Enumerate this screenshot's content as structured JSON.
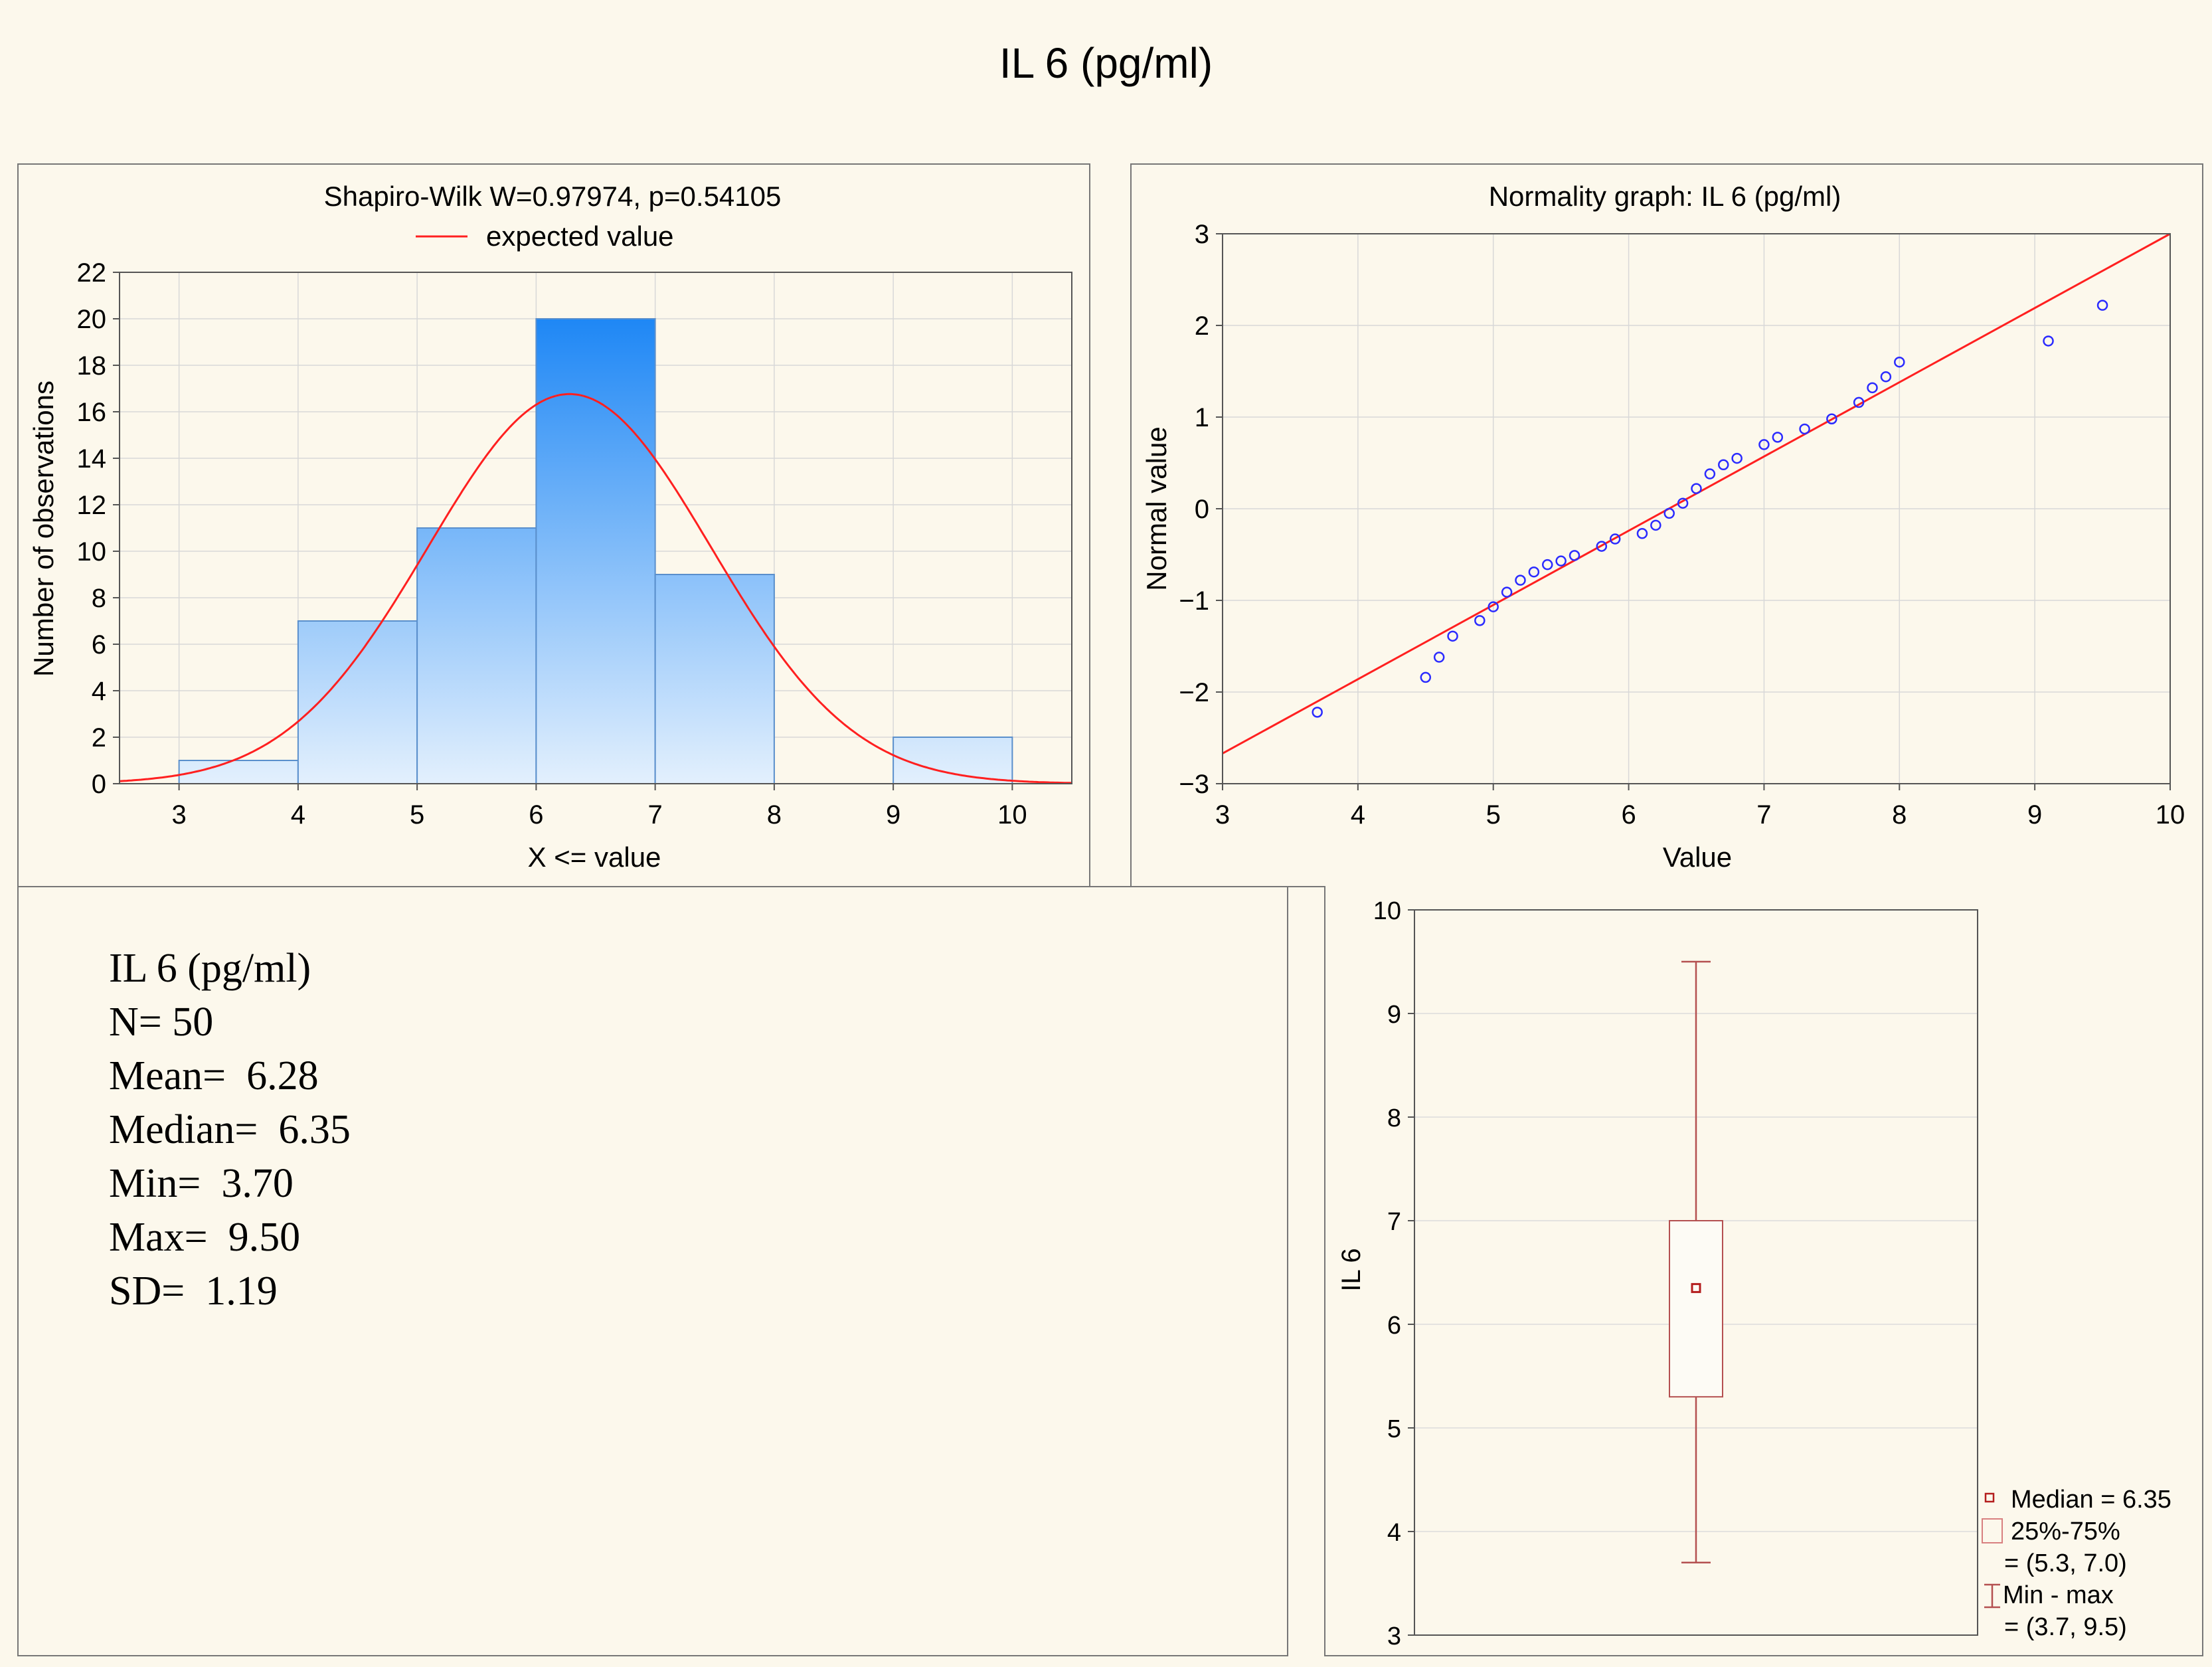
{
  "page": {
    "title": "IL 6 (pg/ml)"
  },
  "colors": {
    "background": "#fcf8ec",
    "bar_top": "#1e87f5",
    "bar_bottom": "#e3f0fd",
    "expected_line": "#ff2020",
    "points": "#2b2bff",
    "box": "#b45050"
  },
  "stats": {
    "title": "IL 6 (pg/ml)",
    "lines": [
      "N= 50",
      "Mean=  6.28",
      "Median=  6.35",
      "Min=  3.70",
      "Max=  9.50",
      "SD=  1.19"
    ]
  },
  "chart_data": [
    {
      "type": "bar",
      "title": "Shapiro-Wilk W=0.97974, p=0.54105",
      "legend": [
        "expected value"
      ],
      "xlabel": "X <=  value",
      "ylabel": "Number of observations",
      "xlim": [
        2.5,
        10.5
      ],
      "ylim": [
        0,
        22
      ],
      "xticks": [
        3,
        4,
        5,
        6,
        7,
        8,
        9,
        10
      ],
      "yticks": [
        0,
        2,
        4,
        6,
        8,
        10,
        12,
        14,
        16,
        18,
        20,
        22
      ],
      "bins": [
        {
          "from": 3,
          "to": 4,
          "value": 1
        },
        {
          "from": 4,
          "to": 5,
          "value": 7
        },
        {
          "from": 5,
          "to": 6,
          "value": 11
        },
        {
          "from": 6,
          "to": 7,
          "value": 20
        },
        {
          "from": 7,
          "to": 8,
          "value": 9
        },
        {
          "from": 9,
          "to": 10,
          "value": 2
        }
      ],
      "expected_curve": {
        "n": 50,
        "bin_width": 1,
        "mean": 6.28,
        "sd": 1.19
      },
      "grid": true
    },
    {
      "type": "scatter",
      "title": "Normality graph: IL 6 (pg/ml)",
      "xlabel": "Value",
      "ylabel": "Normal value",
      "xlim": [
        3,
        10
      ],
      "ylim": [
        -3,
        3
      ],
      "xticks": [
        3,
        4,
        5,
        6,
        7,
        8,
        9,
        10
      ],
      "yticks": [
        -3,
        -2,
        -1,
        0,
        1,
        2,
        3
      ],
      "points": [
        [
          3.7,
          -2.22
        ],
        [
          4.5,
          -1.84
        ],
        [
          4.6,
          -1.62
        ],
        [
          4.7,
          -1.39
        ],
        [
          4.9,
          -1.22
        ],
        [
          5.0,
          -1.07
        ],
        [
          5.1,
          -0.91
        ],
        [
          5.2,
          -0.78
        ],
        [
          5.3,
          -0.69
        ],
        [
          5.4,
          -0.61
        ],
        [
          5.5,
          -0.57
        ],
        [
          5.6,
          -0.51
        ],
        [
          5.8,
          -0.41
        ],
        [
          5.9,
          -0.33
        ],
        [
          6.1,
          -0.27
        ],
        [
          6.2,
          -0.18
        ],
        [
          6.3,
          -0.05
        ],
        [
          6.4,
          0.06
        ],
        [
          6.5,
          0.22
        ],
        [
          6.6,
          0.38
        ],
        [
          6.7,
          0.48
        ],
        [
          6.8,
          0.55
        ],
        [
          7.0,
          0.7
        ],
        [
          7.1,
          0.78
        ],
        [
          7.3,
          0.87
        ],
        [
          7.5,
          0.98
        ],
        [
          7.7,
          1.16
        ],
        [
          7.8,
          1.32
        ],
        [
          7.9,
          1.44
        ],
        [
          8.0,
          1.6
        ],
        [
          9.1,
          1.83
        ],
        [
          9.5,
          2.22
        ]
      ],
      "reference_line": [
        [
          3,
          -2.67
        ],
        [
          10,
          3.0
        ]
      ],
      "grid": true
    },
    {
      "type": "box",
      "ylabel": "IL 6",
      "ylim": [
        3,
        10
      ],
      "yticks": [
        3,
        4,
        5,
        6,
        7,
        8,
        9,
        10
      ],
      "median": 6.35,
      "q1": 5.3,
      "q3": 7.0,
      "min": 3.7,
      "max": 9.5,
      "legend": [
        "Median = 6.35",
        "25%-75%",
        "= (5.3, 7.0)",
        "Min - max",
        "= (3.7, 9.5)"
      ],
      "grid": true
    }
  ]
}
